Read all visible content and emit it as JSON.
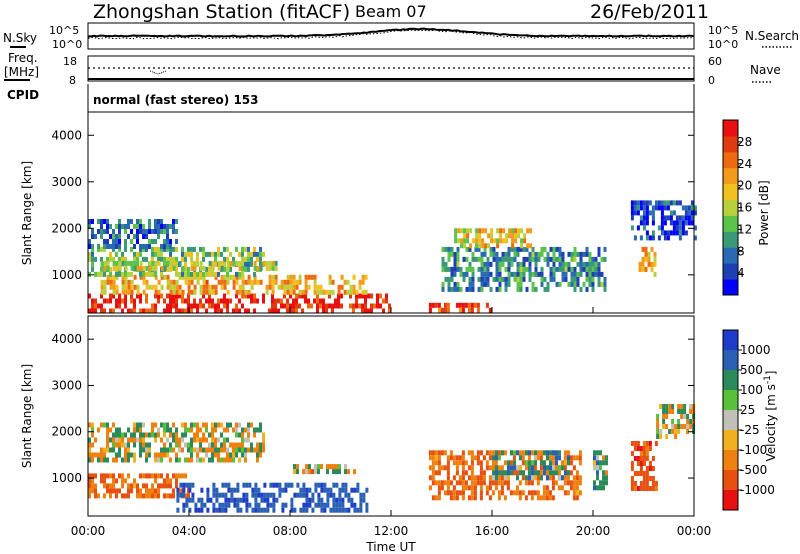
{
  "header": {
    "title": "Zhongshan Station (fitACF)",
    "beam": "Beam 07",
    "date": "26/Feb/2011"
  },
  "top_panels": {
    "nsky_label": "N.Sky",
    "nsearch_label": "N.Search",
    "noise_ticks_left": [
      "10^5",
      "10^0"
    ],
    "noise_ticks_right": [
      "10^5",
      "10^0"
    ],
    "freq_label": "Freq.",
    "freq_unit": "[MHz]",
    "freq_ticks": [
      "18",
      "8"
    ],
    "nave_label": "Nave",
    "nave_ticks": [
      "60",
      "0"
    ],
    "cpid_label": "CPID",
    "cpid_value": "normal (fast stereo) 153"
  },
  "chart_data": [
    {
      "type": "heatmap",
      "title": "",
      "xlabel": "",
      "ylabel": "Slant Range [km]",
      "xlim": [
        "00:00",
        "24:00"
      ],
      "ylim": [
        180,
        4500
      ],
      "y_ticks": [
        1000,
        2000,
        3000,
        4000
      ],
      "colorbar": {
        "label": "Power [dB]",
        "ticks": [
          "4",
          "8",
          "12",
          "16",
          "20",
          "24",
          "28"
        ],
        "colors": [
          "#0000ff",
          "#1e3fb4",
          "#2a6ab2",
          "#3a9a78",
          "#5bc24a",
          "#b8d03c",
          "#f0c020",
          "#f29a1a",
          "#ee6a10",
          "#e03a10",
          "#e81010"
        ]
      },
      "regions": [
        {
          "t": [
            0.0,
            12.0
          ],
          "r": [
            180,
            600
          ],
          "value": 28
        },
        {
          "t": [
            0.5,
            11.0
          ],
          "r": [
            600,
            1000
          ],
          "value": 20
        },
        {
          "t": [
            0.0,
            7.0
          ],
          "r": [
            1000,
            1600
          ],
          "value": 14
        },
        {
          "t": [
            0.0,
            3.5
          ],
          "r": [
            1600,
            2200
          ],
          "value": 8
        },
        {
          "t": [
            0.5,
            7.5
          ],
          "r": [
            1150,
            1300
          ],
          "value": 16
        },
        {
          "t": [
            14.0,
            20.5
          ],
          "r": [
            700,
            1600
          ],
          "value": 10
        },
        {
          "t": [
            14.5,
            17.5
          ],
          "r": [
            1600,
            2000
          ],
          "value": 18
        },
        {
          "t": [
            13.5,
            16.0
          ],
          "r": [
            200,
            400
          ],
          "value": 26
        },
        {
          "t": [
            21.5,
            24.0
          ],
          "r": [
            1800,
            2600
          ],
          "value": 6
        },
        {
          "t": [
            21.8,
            22.5
          ],
          "r": [
            1000,
            1600
          ],
          "value": 20
        }
      ]
    },
    {
      "type": "heatmap",
      "title": "",
      "xlabel": "Time UT",
      "ylabel": "Slant Range [km]",
      "xlim": [
        "00:00",
        "24:00"
      ],
      "ylim": [
        180,
        4500
      ],
      "x_ticks": [
        "00:00",
        "04:00",
        "08:00",
        "12:00",
        "16:00",
        "20:00",
        "00:00"
      ],
      "y_ticks": [
        1000,
        2000,
        3000,
        4000
      ],
      "colorbar": {
        "label": "Velocity [m s^-1]",
        "ticks": [
          "1000",
          "500",
          "100",
          "25",
          "-25",
          "-100",
          "-500",
          "-1000"
        ],
        "colors": [
          "#1e3cc8",
          "#2a60b4",
          "#2a8a5a",
          "#5ac03c",
          "#c0c0b8",
          "#f0b020",
          "#ee8010",
          "#e85010",
          "#e81010"
        ]
      },
      "regions": [
        {
          "t": [
            0.0,
            7.0
          ],
          "r": [
            1400,
            2200
          ],
          "value": 0
        },
        {
          "t": [
            0.0,
            4.0
          ],
          "r": [
            600,
            1100
          ],
          "value": -300
        },
        {
          "t": [
            3.5,
            11.0
          ],
          "r": [
            300,
            900
          ],
          "value": 600
        },
        {
          "t": [
            8.0,
            10.5
          ],
          "r": [
            1150,
            1300
          ],
          "value": -80
        },
        {
          "t": [
            13.5,
            19.5
          ],
          "r": [
            600,
            1600
          ],
          "value": -300
        },
        {
          "t": [
            16.0,
            19.0
          ],
          "r": [
            1000,
            1600
          ],
          "value": 150
        },
        {
          "t": [
            20.0,
            20.5
          ],
          "r": [
            800,
            1600
          ],
          "value": 120
        },
        {
          "t": [
            21.5,
            22.5
          ],
          "r": [
            800,
            1800
          ],
          "value": -500
        },
        {
          "t": [
            22.5,
            24.0
          ],
          "r": [
            1900,
            2600
          ],
          "value": 0
        }
      ]
    }
  ],
  "colors": {
    "frame": "#000000",
    "background": "#ffffff",
    "noise_curve": "#000000"
  }
}
